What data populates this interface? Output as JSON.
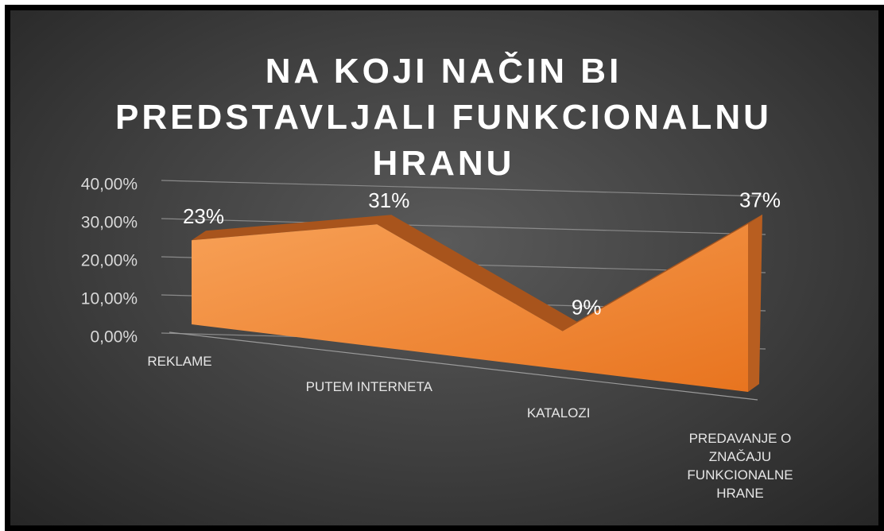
{
  "chart_data": {
    "type": "area",
    "title": "NA KOJI NAČIN BI PREDSTAVLJALI FUNKCIONALNU HRANU",
    "categories": [
      "REKLAME",
      "PUTEM INTERNETA",
      "KATALOZI",
      "PREDAVANJE O ZNAČAJU FUNKCIONALNE HRANE"
    ],
    "values": [
      23,
      31,
      9,
      37
    ],
    "value_labels": [
      "23%",
      "31%",
      "9%",
      "37%"
    ],
    "color": "#f08a3a",
    "ylim": [
      0,
      40
    ],
    "yticks": [
      {
        "value": 0,
        "label": "0,00%"
      },
      {
        "value": 10,
        "label": "10,00%"
      },
      {
        "value": 20,
        "label": "20,00%"
      },
      {
        "value": 30,
        "label": "30,00%"
      },
      {
        "value": 40,
        "label": "40,00%"
      }
    ],
    "grid": true
  }
}
